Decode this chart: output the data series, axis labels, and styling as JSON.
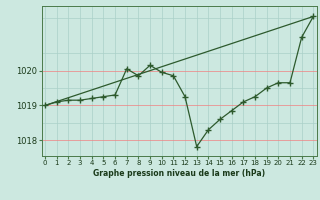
{
  "title": "Graphe pression niveau de la mer (hPa)",
  "background_color": "#cce8e0",
  "line_color": "#2d5a2d",
  "grid_color_v": "#aad0c8",
  "grid_color_h": "#f08080",
  "xlabel_color": "#1a3a1a",
  "series_zigzag": {
    "x": [
      0,
      1,
      2,
      3,
      4,
      5,
      6,
      7,
      8,
      9,
      10,
      11,
      12,
      13,
      14,
      15,
      16,
      17,
      18,
      19,
      20,
      21,
      22,
      23
    ],
    "y": [
      1019.0,
      1019.1,
      1019.15,
      1019.15,
      1019.2,
      1019.25,
      1019.3,
      1020.05,
      1019.85,
      1020.15,
      1019.95,
      1019.85,
      1019.25,
      1017.82,
      1018.3,
      1018.6,
      1018.85,
      1019.1,
      1019.25,
      1019.5,
      1019.65,
      1019.65,
      1020.95,
      1021.55
    ]
  },
  "series_trend": {
    "x": [
      0,
      23
    ],
    "y": [
      1019.0,
      1021.55
    ]
  },
  "ylim": [
    1017.55,
    1021.85
  ],
  "yticks": [
    1018,
    1019,
    1020
  ],
  "xlim": [
    -0.3,
    23.3
  ],
  "xticks": [
    0,
    1,
    2,
    3,
    4,
    5,
    6,
    7,
    8,
    9,
    10,
    11,
    12,
    13,
    14,
    15,
    16,
    17,
    18,
    19,
    20,
    21,
    22,
    23
  ]
}
